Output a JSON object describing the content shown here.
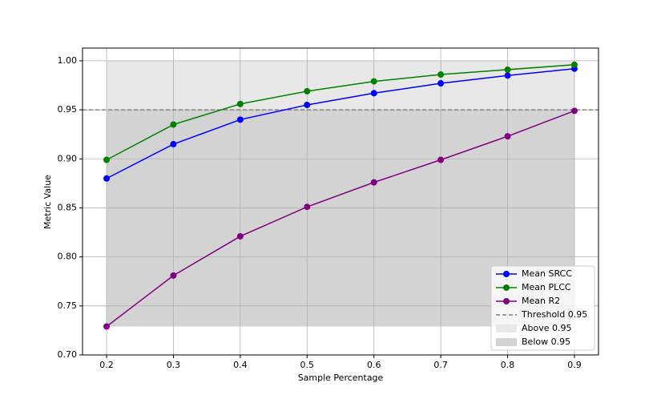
{
  "chart_data": {
    "type": "line",
    "x_label": "Sample Percentage",
    "y_label": "Metric Value",
    "x": [
      0.2,
      0.3,
      0.4,
      0.5,
      0.6,
      0.7,
      0.8,
      0.9
    ],
    "series": [
      {
        "name": "Mean SRCC",
        "color": "#0000ff",
        "values": [
          0.88,
          0.915,
          0.94,
          0.955,
          0.967,
          0.977,
          0.985,
          0.992
        ]
      },
      {
        "name": "Mean PLCC",
        "color": "#008000",
        "values": [
          0.899,
          0.935,
          0.956,
          0.969,
          0.979,
          0.986,
          0.991,
          0.996
        ]
      },
      {
        "name": "Mean R2",
        "color": "#800080",
        "values": [
          0.729,
          0.781,
          0.821,
          0.851,
          0.876,
          0.899,
          0.923,
          0.949
        ]
      }
    ],
    "threshold": {
      "name": "Threshold 0.95",
      "value": 0.95,
      "color": "#808080"
    },
    "bands": [
      {
        "name": "Above 0.95",
        "color": "#e8e8e8",
        "range": [
          0.95,
          1.0
        ]
      },
      {
        "name": "Below 0.95",
        "color": "#d3d3d3",
        "range": [
          0.729,
          0.95
        ]
      }
    ],
    "xlim": [
      0.164,
      0.936
    ],
    "ylim": [
      0.7,
      1.013
    ],
    "xticks": [
      0.2,
      0.3,
      0.4,
      0.5,
      0.6,
      0.7,
      0.8,
      0.9
    ],
    "yticks": [
      {
        "value": 0.7,
        "label": "0.70"
      },
      {
        "value": 0.75,
        "label": "0.75"
      },
      {
        "value": 0.8,
        "label": "0.80"
      },
      {
        "value": 0.85,
        "label": "0.85"
      },
      {
        "value": 0.9,
        "label": "0.90"
      },
      {
        "value": 0.95,
        "label": "0.95"
      },
      {
        "value": 1.0,
        "label": "1.00"
      }
    ],
    "grid": true,
    "legend": "lower right"
  }
}
